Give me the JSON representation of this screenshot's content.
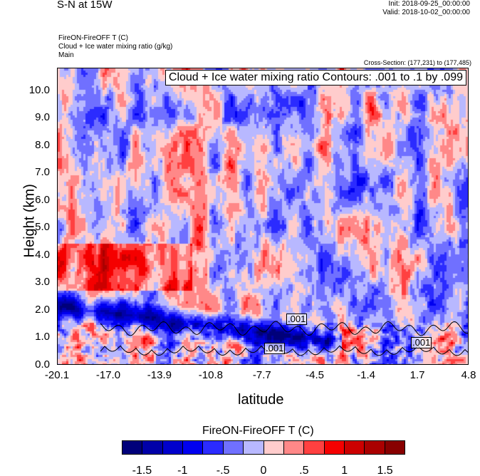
{
  "header": {
    "title": "S-N at 15W",
    "init": "Init: 2018-09-25_00:00:00",
    "valid": "Valid: 2018-10-02_00:00:00",
    "field1": "FireON-FireOFF T   (C)",
    "field2": "Cloud + Ice water mixing ratio   (g/kg)",
    "field3": "Main",
    "cross_section": "Cross-Section: (177,231) to (177,485)"
  },
  "chart_data": {
    "type": "heatmap",
    "title": "S-N at 15W",
    "xlabel": "latitude",
    "ylabel": "Height (km)",
    "xlim": [
      -20.1,
      4.8
    ],
    "ylim": [
      0,
      10.83
    ],
    "x_ticks": [
      "-20.1",
      "-17.0",
      "-13.9",
      "-10.8",
      "-7.7",
      "-4.5",
      "-1.4",
      "1.7",
      "4.8"
    ],
    "x_tick_values": [
      -20.1,
      -17.0,
      -13.9,
      -10.8,
      -7.7,
      -4.5,
      -1.4,
      1.7,
      4.8
    ],
    "y_ticks": [
      "0.0",
      "1.0",
      "2.0",
      "3.0",
      "4.0",
      "5.0",
      "6.0",
      "7.0",
      "8.0",
      "9.0",
      "10.0"
    ],
    "contour_legend": "Cloud + Ice water mixing ratio Contours: .001 to .1 by .099",
    "contour_labels": [
      ".001",
      ".001",
      ".001"
    ],
    "colorbar": {
      "title": "FireON-FireOFF T  (C)",
      "levels": [
        -1.5,
        -1.25,
        -1,
        -0.75,
        -0.5,
        -0.25,
        0,
        0.25,
        0.5,
        0.75,
        1,
        1.25,
        1.5
      ],
      "labels": [
        "-1.5",
        "-1",
        "-.5",
        "0",
        ".5",
        "1",
        "1.5"
      ],
      "colors": [
        "#00007a",
        "#0000a8",
        "#0000cc",
        "#0000f0",
        "#2b2bff",
        "#7070ff",
        "#b8b8ff",
        "#ffcccc",
        "#ff8888",
        "#ff4040",
        "#f50000",
        "#cc0000",
        "#aa0000",
        "#880000"
      ]
    }
  }
}
